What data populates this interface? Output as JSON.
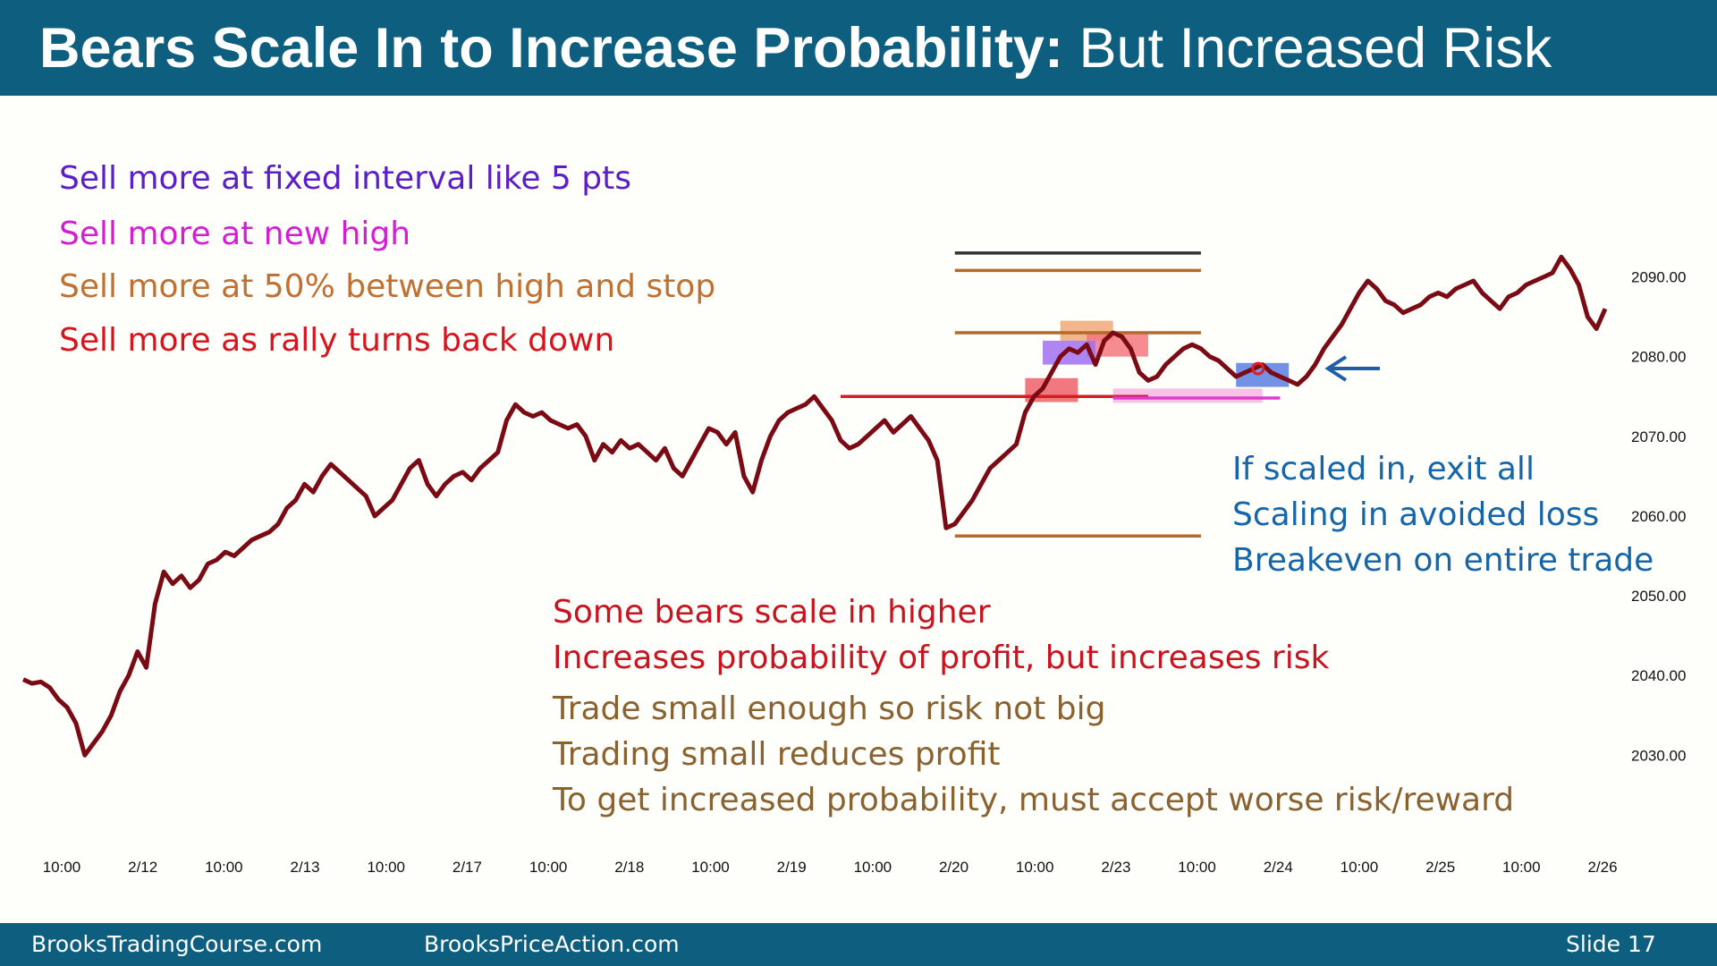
{
  "title": {
    "bold": "Bears Scale In to Increase Probability:",
    "normal": "But Increased Risk"
  },
  "notes": {
    "top": [
      {
        "text": "Sell more at fixed interval like 5 pts",
        "color": "#5b1fc8"
      },
      {
        "text": "Sell more at new high",
        "color": "#d21fd2"
      },
      {
        "text": "Sell more at 50% between high and stop",
        "color": "#c07030"
      },
      {
        "text": "Sell more as rally turns back down",
        "color": "#d8141e"
      }
    ],
    "right": [
      {
        "text": "If scaled in, exit all",
        "color": "#1565a8"
      },
      {
        "text": "Scaling in avoided loss",
        "color": "#1565a8"
      },
      {
        "text": "Breakeven on entire trade",
        "color": "#1565a8"
      }
    ],
    "bottom_red": [
      {
        "text": "Some bears scale in higher",
        "color": "#c8141e"
      },
      {
        "text": "Increases probability of profit, but increases risk",
        "color": "#c8141e"
      }
    ],
    "bottom_brown": [
      {
        "text": "Trade small enough so risk not big",
        "color": "#8a6230"
      },
      {
        "text": "Trading small reduces profit",
        "color": "#8a6230"
      },
      {
        "text": "To get increased probability, must accept worse risk/reward",
        "color": "#8a6230"
      }
    ]
  },
  "footer": {
    "left": "BrooksTradingCourse.com",
    "center": "BrooksPriceAction.com",
    "right": "Slide  17"
  },
  "chart_data": {
    "type": "line",
    "series": [
      {
        "color": "#7a0a14",
        "x": [
          0,
          1,
          2,
          3,
          4,
          5,
          6,
          7,
          8,
          9,
          10,
          11,
          12,
          13,
          14,
          15,
          16,
          17,
          18,
          19,
          20,
          21,
          22,
          23,
          24,
          25,
          26,
          27,
          28,
          29,
          30,
          31,
          32,
          33,
          34,
          35,
          36,
          37,
          38,
          39,
          40,
          41,
          42,
          43,
          44,
          45,
          46,
          47,
          48,
          49,
          50,
          51,
          52,
          53,
          54,
          55,
          56,
          57,
          58,
          59,
          60,
          61,
          62,
          63,
          64,
          65,
          66,
          67,
          68,
          69,
          70,
          71,
          72,
          73,
          74,
          75,
          76,
          77,
          78,
          79,
          80,
          81,
          82,
          83,
          84,
          85,
          86,
          87,
          88,
          89,
          90,
          91,
          92,
          93,
          94,
          95,
          96,
          97,
          98,
          99,
          100,
          101,
          102,
          103,
          104,
          105,
          106,
          107,
          108,
          109,
          110,
          111,
          112,
          113,
          114,
          115,
          116,
          117,
          118,
          119,
          120,
          121,
          122,
          123,
          124,
          125,
          126,
          127,
          128,
          129,
          130,
          131,
          132,
          133,
          134,
          135,
          136,
          137,
          138,
          139,
          140,
          141,
          142,
          143,
          144,
          145,
          146,
          147,
          148,
          149,
          150,
          151,
          152,
          153,
          154,
          155,
          156,
          157,
          158,
          159,
          160,
          161,
          162,
          163,
          164,
          165,
          166,
          167,
          168,
          169,
          170,
          171,
          172,
          173,
          174,
          175,
          176,
          177,
          178,
          179,
          180
        ],
        "y": [
          2039.5,
          2039.0,
          2039.2,
          2038.5,
          2037.0,
          2036.0,
          2034.0,
          2030.0,
          2031.5,
          2033.0,
          2035.0,
          2038.0,
          2040.0,
          2043.0,
          2041.0,
          2049.0,
          2053.0,
          2051.5,
          2052.5,
          2051.0,
          2052.0,
          2054.0,
          2054.5,
          2055.5,
          2055.0,
          2056.0,
          2057.0,
          2057.5,
          2058.0,
          2059.0,
          2061.0,
          2062.0,
          2064.0,
          2063.0,
          2065.0,
          2066.5,
          2065.5,
          2064.5,
          2063.5,
          2062.5,
          2060.0,
          2061.0,
          2062.0,
          2064.0,
          2066.0,
          2067.0,
          2064.0,
          2062.5,
          2064.0,
          2065.0,
          2065.5,
          2064.5,
          2066.0,
          2067.0,
          2068.0,
          2072.0,
          2074.0,
          2073.0,
          2072.5,
          2073.0,
          2072.0,
          2071.5,
          2071.0,
          2071.5,
          2070.0,
          2067.0,
          2069.0,
          2068.0,
          2069.5,
          2068.5,
          2069.0,
          2068.0,
          2067.0,
          2068.5,
          2066.0,
          2065.0,
          2067.0,
          2069.0,
          2071.0,
          2070.5,
          2069.0,
          2070.5,
          2065.0,
          2063.0,
          2067.0,
          2070.0,
          2072.0,
          2073.0,
          2073.5,
          2074.0,
          2075.0,
          2073.5,
          2072.0,
          2069.5,
          2068.5,
          2069.0,
          2070.0,
          2071.0,
          2072.0,
          2070.5,
          2071.5,
          2072.5,
          2071.0,
          2069.5,
          2067.0,
          2058.5,
          2059.0,
          2060.5,
          2062.0,
          2064.0,
          2066.0,
          2067.0,
          2068.0,
          2069.0,
          2073.0,
          2075.0,
          2076.0,
          2078.0,
          2080.0,
          2081.0,
          2080.5,
          2081.5,
          2079.0,
          2082.0,
          2083.0,
          2082.5,
          2081.0,
          2078.0,
          2077.0,
          2077.5,
          2079.0,
          2080.0,
          2081.0,
          2081.5,
          2081.0,
          2080.0,
          2079.5,
          2078.5,
          2077.5,
          2078.0,
          2078.5,
          2079.0,
          2078.0,
          2077.5,
          2077.0,
          2076.5,
          2077.5,
          2079.0,
          2081.0,
          2082.5,
          2084.0,
          2086.0,
          2088.0,
          2089.5,
          2088.5,
          2087.0,
          2086.5,
          2085.5,
          2086.0,
          2086.5,
          2087.5,
          2088.0,
          2087.5,
          2088.5,
          2089.0,
          2089.5,
          2088.0,
          2087.0,
          2086.0,
          2087.5,
          2088.0,
          2089.0,
          2089.5,
          2090.0,
          2090.5,
          2092.5,
          2091.0,
          2089.0,
          2085.0,
          2083.5,
          2086.0
        ]
      }
    ],
    "x_tick_labels": [
      "10:00",
      "2/12",
      "10:00",
      "2/13",
      "10:00",
      "2/17",
      "10:00",
      "2/18",
      "10:00",
      "2/19",
      "10:00",
      "2/20",
      "10:00",
      "2/23",
      "10:00",
      "2/24",
      "10:00",
      "2/25",
      "10:00",
      "2/26"
    ],
    "y_tick_labels": [
      "2090.00",
      "2080.00",
      "2070.00",
      "2060.00",
      "2050.00",
      "2040.00",
      "2030.00"
    ],
    "ylim": [
      2026,
      2095
    ],
    "level_lines": [
      {
        "y": 2093.0,
        "color": "#333333",
        "x_range": [
          106,
          134
        ]
      },
      {
        "y": 2090.8,
        "color": "#b36a2c",
        "x_range": [
          106,
          134
        ]
      },
      {
        "y": 2083.0,
        "color": "#b36a2c",
        "x_range": [
          106,
          134
        ]
      },
      {
        "y": 2075.0,
        "color": "#d21f22",
        "x_range": [
          93,
          128
        ]
      },
      {
        "y": 2074.8,
        "color": "#e03ad0",
        "x_range": [
          124,
          143
        ]
      },
      {
        "y": 2057.5,
        "color": "#b36a2c",
        "x_range": [
          106,
          134
        ]
      }
    ],
    "boxes": [
      {
        "x_range": [
          118,
          124
        ],
        "y_range": [
          2082.0,
          2084.5
        ],
        "color": "#f0a878"
      },
      {
        "x_range": [
          121,
          128
        ],
        "y_range": [
          2080.0,
          2083.0
        ],
        "color": "#f5787e"
      },
      {
        "x_range": [
          116,
          122
        ],
        "y_range": [
          2079.0,
          2082.0
        ],
        "color": "#a070f0"
      },
      {
        "x_range": [
          114,
          120
        ],
        "y_range": [
          2074.3,
          2077.3
        ],
        "color": "#f06068"
      },
      {
        "x_range": [
          124,
          141
        ],
        "y_range": [
          2074.2,
          2076.0
        ],
        "color": "#f5b8e2"
      },
      {
        "x_range": [
          138,
          144
        ],
        "y_range": [
          2076.2,
          2079.2
        ],
        "color": "#5a7ee0"
      }
    ],
    "markers": [
      {
        "x": 140.5,
        "y": 2078.5,
        "color": "#e01e24"
      }
    ]
  }
}
